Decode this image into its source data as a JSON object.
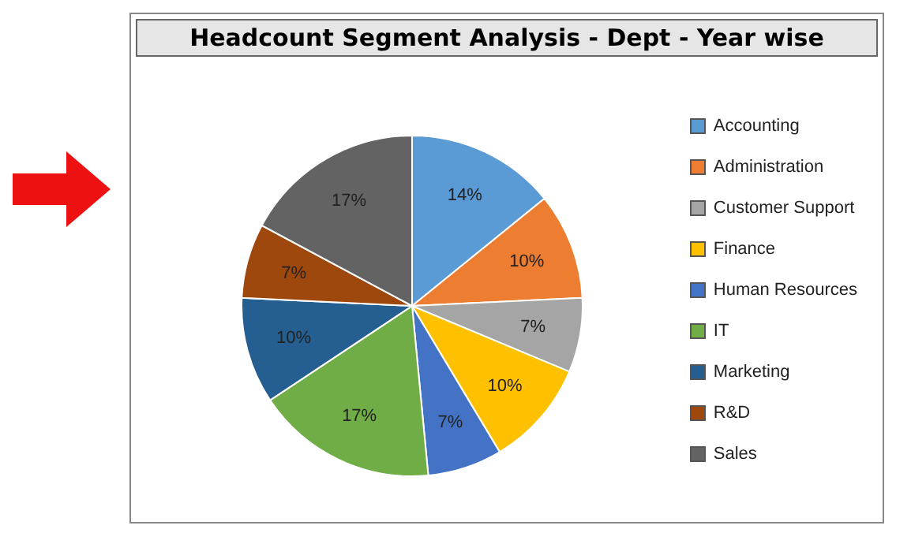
{
  "chart_data": {
    "type": "pie",
    "title": "Headcount Segment Analysis - Dept - Year wise",
    "categories": [
      "Accounting",
      "Administration",
      "Customer Support",
      "Finance",
      "Human Resources",
      "IT",
      "Marketing",
      "R&D",
      "Sales"
    ],
    "values": [
      14,
      10,
      7,
      10,
      7,
      17,
      10,
      7,
      17
    ],
    "value_labels": [
      "14%",
      "10%",
      "7%",
      "10%",
      "7%",
      "17%",
      "10%",
      "7%",
      "17%"
    ],
    "colors": [
      "#5b9bd5",
      "#ed7d31",
      "#a5a5a5",
      "#ffc000",
      "#4472c4",
      "#70ad47",
      "#255e91",
      "#9e480e",
      "#636363"
    ],
    "legend": "right"
  }
}
